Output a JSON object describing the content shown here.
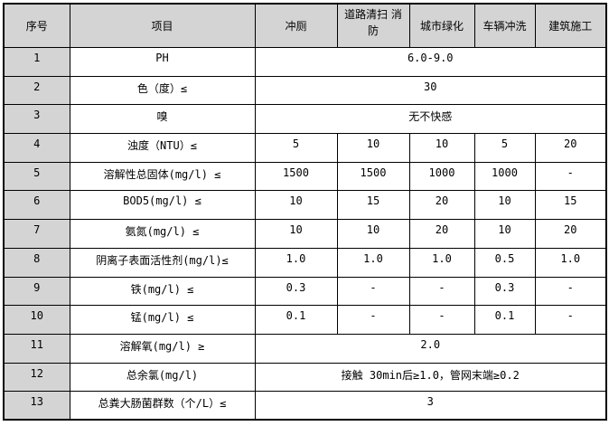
{
  "headers": [
    "序号",
    "项目",
    "冲厕",
    "道路清扫 消防",
    "城市绿化",
    "车辆冲洗",
    "建筑施工"
  ],
  "rows": [
    {
      "seq": "1",
      "item": "PH",
      "merged": "6.0-9.0"
    },
    {
      "seq": "2",
      "item": "色（度）≤",
      "merged": "30"
    },
    {
      "seq": "3",
      "item": "嗅",
      "merged": "无不快感"
    },
    {
      "seq": "4",
      "item": "浊度（NTU）≤",
      "values": [
        "5",
        "10",
        "10",
        "5",
        "20"
      ]
    },
    {
      "seq": "5",
      "item": "溶解性总固体(mg/l) ≤",
      "values": [
        "1500",
        "1500",
        "1000",
        "1000",
        "-"
      ]
    },
    {
      "seq": "6",
      "item": "BOD5(mg/l) ≤",
      "values": [
        "10",
        "15",
        "20",
        "10",
        "15"
      ]
    },
    {
      "seq": "7",
      "item": "氨氮(mg/l) ≤",
      "values": [
        "10",
        "10",
        "20",
        "10",
        "20"
      ]
    },
    {
      "seq": "8",
      "item": "阴离子表面活性剂(mg/l)≤",
      "values": [
        "1.0",
        "1.0",
        "1.0",
        "0.5",
        "1.0"
      ]
    },
    {
      "seq": "9",
      "item": "铁(mg/l) ≤",
      "values": [
        "0.3",
        "-",
        "-",
        "0.3",
        "-"
      ]
    },
    {
      "seq": "10",
      "item": "锰(mg/l) ≤",
      "values": [
        "0.1",
        "-",
        "-",
        "0.1",
        "-"
      ]
    },
    {
      "seq": "11",
      "item": "溶解氧(mg/l) ≥",
      "merged": "2.0"
    },
    {
      "seq": "12",
      "item": "总余氯(mg/l)",
      "merged": "接触 30min后≥1.0，管网末端≥0.2"
    },
    {
      "seq": "13",
      "item": "总粪大肠菌群数（个/L）≤",
      "merged": "3"
    }
  ]
}
